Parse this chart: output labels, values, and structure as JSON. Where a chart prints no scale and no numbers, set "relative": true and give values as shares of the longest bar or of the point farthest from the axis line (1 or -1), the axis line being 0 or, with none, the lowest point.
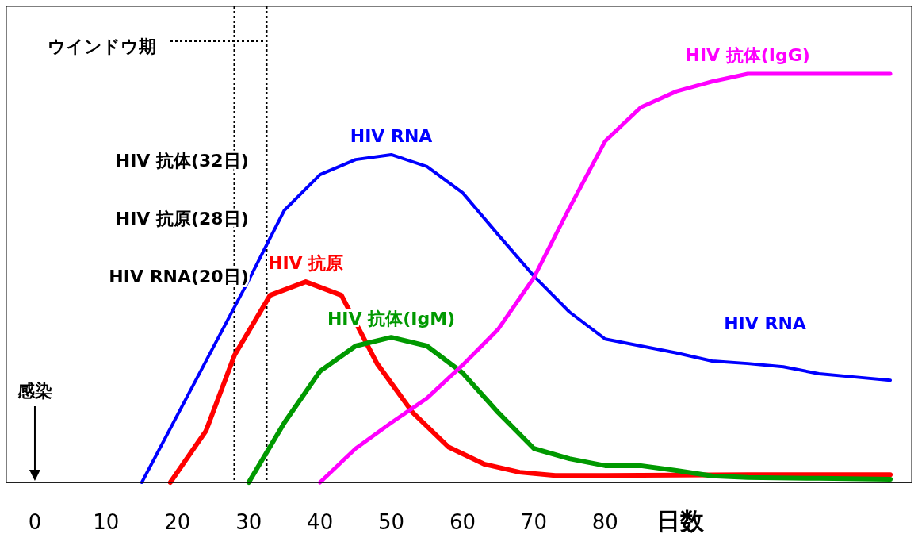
{
  "chart_data": {
    "type": "line",
    "relative": true,
    "xlabel": "日数",
    "xlim": [
      -4,
      123
    ],
    "xticks": [
      0,
      10,
      20,
      30,
      40,
      50,
      60,
      70,
      80
    ],
    "line_style": "solid",
    "marker": "none",
    "grid": false,
    "ref_lines": [
      {
        "axis": "x",
        "value": 28,
        "color": "#000000",
        "line_style": "dotted"
      },
      {
        "axis": "x",
        "value": 32.5,
        "color": "#000000",
        "line_style": "dotted"
      }
    ],
    "annotations": [
      "ウインドウ期",
      "HIV 抗体(32日)",
      "HIV 抗原(28日)",
      "HIV RNA(20日)",
      "感染",
      "HIV RNA"
    ],
    "series": [
      {
        "name": "HIV RNA",
        "color": "#0000ff",
        "x": [
          15,
          30,
          33,
          35,
          40,
          45,
          50,
          55,
          60,
          65,
          70,
          75,
          80,
          85,
          90,
          95,
          100,
          105,
          110,
          115,
          120
        ],
        "values": [
          0,
          0.495,
          0.598,
          0.666,
          0.753,
          0.79,
          0.802,
          0.773,
          0.709,
          0.606,
          0.505,
          0.417,
          0.351,
          0.334,
          0.317,
          0.297,
          0.291,
          0.283,
          0.266,
          0.258,
          0.25
        ]
      },
      {
        "name": "HIV 抗原",
        "color": "#ff0000",
        "x": [
          19,
          24,
          28,
          33,
          38,
          43,
          48,
          53,
          58,
          63,
          68,
          73,
          80,
          90,
          100,
          110,
          120
        ],
        "values": [
          0,
          0.126,
          0.311,
          0.458,
          0.491,
          0.458,
          0.291,
          0.171,
          0.087,
          0.045,
          0.025,
          0.017,
          0.017,
          0.018,
          0.019,
          0.019,
          0.019
        ]
      },
      {
        "name": "HIV 抗体(IgM)",
        "color": "#009900",
        "x": [
          30,
          35,
          40,
          45,
          50,
          55,
          60,
          65,
          70,
          75,
          80,
          85,
          90,
          95,
          100,
          110,
          120
        ],
        "values": [
          0,
          0.146,
          0.272,
          0.334,
          0.355,
          0.334,
          0.268,
          0.171,
          0.083,
          0.058,
          0.041,
          0.041,
          0.029,
          0.016,
          0.012,
          0.01,
          0.008
        ]
      },
      {
        "name": "HIV 抗体(IgG)",
        "color": "#ff00ff",
        "x": [
          40,
          45,
          50,
          55,
          60,
          65,
          70,
          75,
          80,
          85,
          90,
          95,
          100,
          120
        ],
        "values": [
          0,
          0.083,
          0.146,
          0.206,
          0.287,
          0.375,
          0.501,
          0.672,
          0.835,
          0.918,
          0.957,
          0.981,
          1,
          1
        ]
      }
    ]
  }
}
